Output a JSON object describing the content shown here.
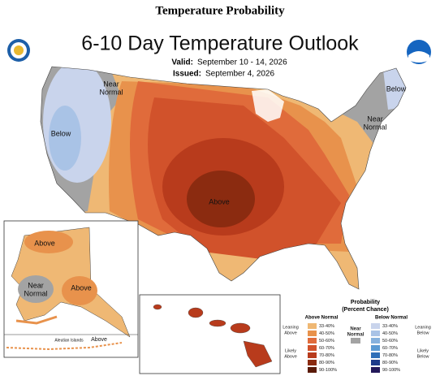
{
  "header": {
    "title": "Temperature Probability",
    "subtitle": "6-10 Day Temperature Outlook",
    "valid_label": "Valid:",
    "valid_date": "September 10 - 14, 2026",
    "issued_label": "Issued:",
    "issued_date": "September 4, 2026"
  },
  "map_labels": [
    {
      "lines": [
        "Near",
        "Normal"
      ]
    },
    {
      "lines": [
        "Below"
      ]
    },
    {
      "lines": [
        "Above"
      ]
    },
    {
      "lines": [
        "Below"
      ]
    },
    {
      "lines": [
        "Near",
        "Normal"
      ]
    }
  ],
  "alaska_labels": [
    {
      "lines": [
        "Above"
      ]
    },
    {
      "lines": [
        "Near",
        "Normal"
      ]
    },
    {
      "lines": [
        "Above"
      ]
    },
    {
      "lines": [
        "Aleutian Islands"
      ]
    },
    {
      "lines": [
        "Above"
      ]
    }
  ],
  "legend": {
    "title": "Probability",
    "subtitle": "(Percent Chance)",
    "above_header": "Above Normal",
    "below_header": "Below Normal",
    "near_label": [
      "Near",
      "Normal"
    ],
    "leaning_above": [
      "Leaning",
      "Above"
    ],
    "likely_above": [
      "Likely",
      "Above"
    ],
    "leaning_below": [
      "Leaning",
      "Below"
    ],
    "likely_below": [
      "Likely",
      "Below"
    ],
    "near_color": "#a3a3a3",
    "rows": [
      {
        "label": "33-40%",
        "above_color": "#efb874",
        "below_color": "#c9d4ec"
      },
      {
        "label": "40-50%",
        "above_color": "#e8924c",
        "below_color": "#a9c3e6"
      },
      {
        "label": "50-60%",
        "above_color": "#e06b3b",
        "below_color": "#86b1dd"
      },
      {
        "label": "60-70%",
        "above_color": "#d1522b",
        "below_color": "#5b9ad3"
      },
      {
        "label": "70-80%",
        "above_color": "#b83b1c",
        "below_color": "#2f6fb8"
      },
      {
        "label": "80-90%",
        "above_color": "#8b2b10",
        "below_color": "#1d3b8a"
      },
      {
        "label": "90-100%",
        "above_color": "#5a1a08",
        "below_color": "#23195a"
      }
    ]
  }
}
